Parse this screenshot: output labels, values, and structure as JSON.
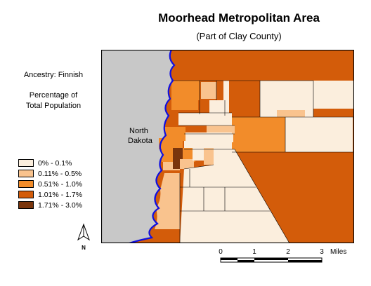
{
  "title": "Moorhead Metropolitan Area",
  "subtitle": "(Part of Clay County)",
  "legend": {
    "heading": "Ancestry: Finnish",
    "subheading_line1": "Percentage of",
    "subheading_line2": "Total Population",
    "classes": [
      {
        "label": "0% - 0.1%",
        "color": "#fbeedd"
      },
      {
        "label": "0.11% - 0.5%",
        "color": "#f9c38e"
      },
      {
        "label": "0.51% - 1.0%",
        "color": "#f28c2a"
      },
      {
        "label": "1.01% - 1.7%",
        "color": "#d35c0a"
      },
      {
        "label": "1.71% - 3.0%",
        "color": "#7a350c"
      }
    ]
  },
  "map": {
    "neighbor_label_line1": "North",
    "neighbor_label_line2": "Dakota",
    "neighbor_color": "#c8c8c8",
    "river_color": "#1010e0"
  },
  "north_arrow": {
    "label": "N"
  },
  "scale": {
    "ticks": [
      "0",
      "1",
      "2",
      "3"
    ],
    "unit": "Miles"
  }
}
